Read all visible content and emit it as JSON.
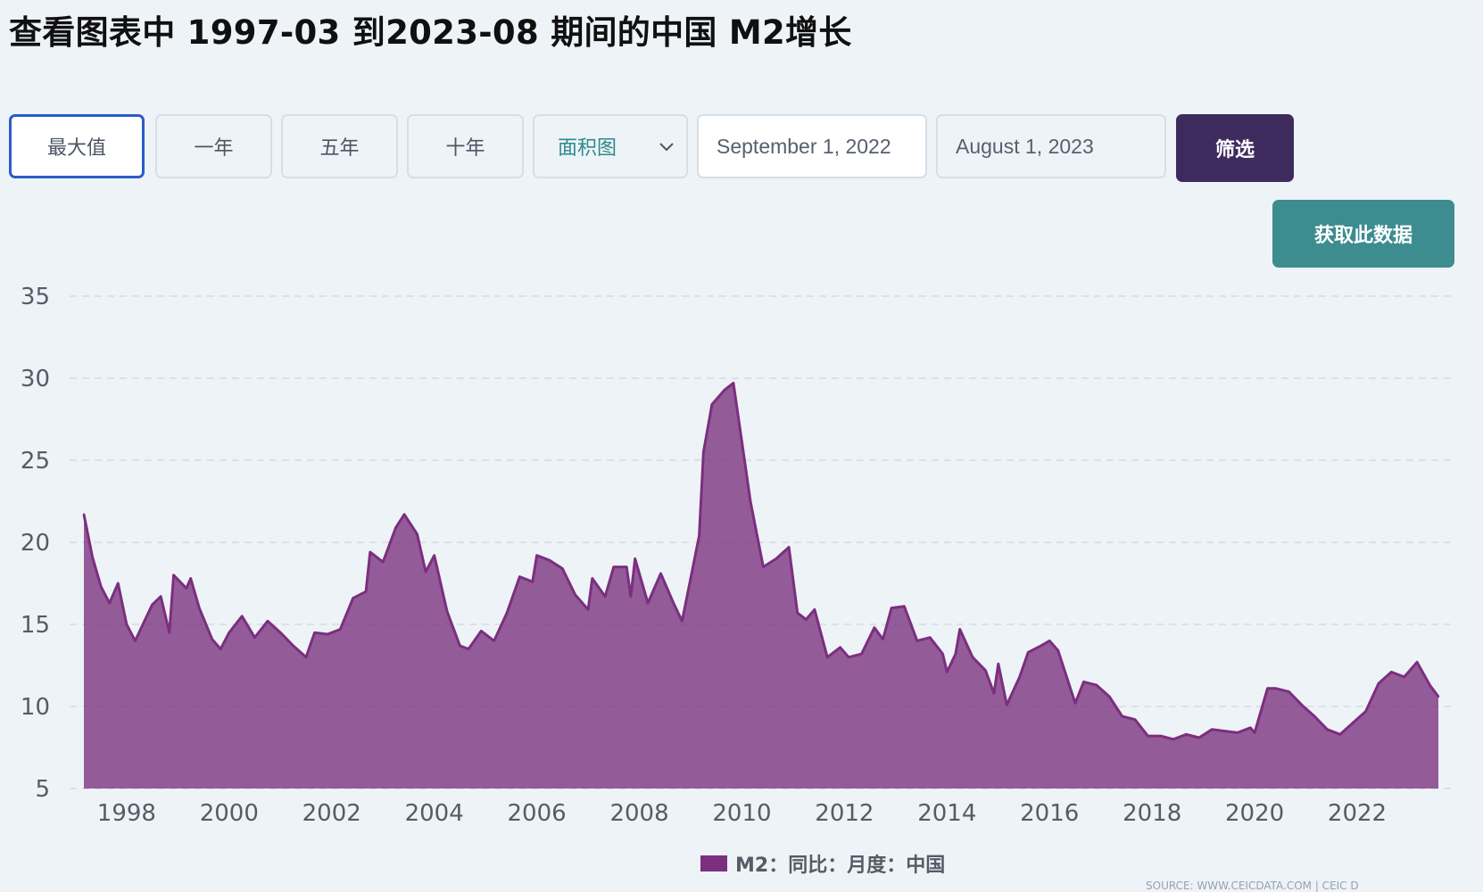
{
  "page": {
    "title": "查看图表中 1997-03 到2023-08 期间的中国 M2增长"
  },
  "controls": {
    "range_buttons": [
      {
        "label": "最大值",
        "active": true
      },
      {
        "label": "一年",
        "active": false
      },
      {
        "label": "五年",
        "active": false
      },
      {
        "label": "十年",
        "active": false
      }
    ],
    "chart_type_select": {
      "value": "面积图",
      "icon": "chevron-down-icon"
    },
    "start_date": "September 1, 2022",
    "end_date": "August 1, 2023",
    "filter_label": "筛选",
    "get_data_label": "获取此数据"
  },
  "colors": {
    "series": "#7b2f7e",
    "filter_button": "#3e2b5e",
    "get_data_button": "#3d8c8f",
    "active_border": "#2b5bc7"
  },
  "chart_data": {
    "type": "area",
    "title": "",
    "xlabel": "",
    "ylabel": "",
    "ylim": [
      5,
      35
    ],
    "yticks": [
      "5",
      "10",
      "15",
      "20",
      "25",
      "30",
      "35"
    ],
    "xlim": [
      "1997-03",
      "2023-08"
    ],
    "xticks": [
      "1998",
      "2000",
      "2002",
      "2004",
      "2006",
      "2008",
      "2010",
      "2012",
      "2014",
      "2016",
      "2018",
      "2020",
      "2022"
    ],
    "grid": "horizontal dashed",
    "legend": "bottom-center",
    "series": [
      {
        "name": "M2：同比：月度：中国",
        "color": "#7b2f7e",
        "points": [
          [
            "1997-03",
            21.7
          ],
          [
            "1997-05",
            19.1
          ],
          [
            "1997-07",
            17.3
          ],
          [
            "1997-09",
            16.3
          ],
          [
            "1997-11",
            17.5
          ],
          [
            "1998-01",
            15.0
          ],
          [
            "1998-03",
            14.0
          ],
          [
            "1998-05",
            15.1
          ],
          [
            "1998-07",
            16.2
          ],
          [
            "1998-09",
            16.7
          ],
          [
            "1998-11",
            14.5
          ],
          [
            "1998-12",
            18.0
          ],
          [
            "1999-03",
            17.2
          ],
          [
            "1999-04",
            17.8
          ],
          [
            "1999-06",
            16.0
          ],
          [
            "1999-09",
            14.1
          ],
          [
            "1999-11",
            13.5
          ],
          [
            "2000-01",
            14.5
          ],
          [
            "2000-04",
            15.5
          ],
          [
            "2000-07",
            14.2
          ],
          [
            "2000-10",
            15.2
          ],
          [
            "2001-01",
            14.5
          ],
          [
            "2001-04",
            13.7
          ],
          [
            "2001-07",
            13.0
          ],
          [
            "2001-09",
            14.5
          ],
          [
            "2001-12",
            14.4
          ],
          [
            "2002-03",
            14.7
          ],
          [
            "2002-06",
            16.6
          ],
          [
            "2002-09",
            17.0
          ],
          [
            "2002-10",
            19.4
          ],
          [
            "2003-01",
            18.8
          ],
          [
            "2003-04",
            20.9
          ],
          [
            "2003-06",
            21.7
          ],
          [
            "2003-09",
            20.5
          ],
          [
            "2003-11",
            18.2
          ],
          [
            "2004-01",
            19.2
          ],
          [
            "2004-04",
            15.8
          ],
          [
            "2004-07",
            13.7
          ],
          [
            "2004-09",
            13.5
          ],
          [
            "2004-12",
            14.6
          ],
          [
            "2005-03",
            14.0
          ],
          [
            "2005-06",
            15.7
          ],
          [
            "2005-09",
            17.9
          ],
          [
            "2005-12",
            17.6
          ],
          [
            "2006-01",
            19.2
          ],
          [
            "2006-04",
            18.9
          ],
          [
            "2006-07",
            18.4
          ],
          [
            "2006-10",
            16.8
          ],
          [
            "2007-01",
            15.9
          ],
          [
            "2007-02",
            17.8
          ],
          [
            "2007-05",
            16.7
          ],
          [
            "2007-07",
            18.5
          ],
          [
            "2007-10",
            18.5
          ],
          [
            "2007-11",
            16.7
          ],
          [
            "2007-12",
            19.0
          ],
          [
            "2008-03",
            16.3
          ],
          [
            "2008-06",
            18.1
          ],
          [
            "2008-09",
            16.3
          ],
          [
            "2008-11",
            15.2
          ],
          [
            "2009-01",
            17.8
          ],
          [
            "2009-03",
            20.4
          ],
          [
            "2009-04",
            25.5
          ],
          [
            "2009-06",
            28.4
          ],
          [
            "2009-09",
            29.3
          ],
          [
            "2009-11",
            29.7
          ],
          [
            "2010-01",
            26.1
          ],
          [
            "2010-03",
            22.5
          ],
          [
            "2010-06",
            18.5
          ],
          [
            "2010-09",
            19.0
          ],
          [
            "2010-12",
            19.7
          ],
          [
            "2011-02",
            15.7
          ],
          [
            "2011-04",
            15.3
          ],
          [
            "2011-06",
            15.9
          ],
          [
            "2011-09",
            13.0
          ],
          [
            "2011-12",
            13.6
          ],
          [
            "2012-02",
            13.0
          ],
          [
            "2012-05",
            13.2
          ],
          [
            "2012-08",
            14.8
          ],
          [
            "2012-10",
            14.1
          ],
          [
            "2012-12",
            16.0
          ],
          [
            "2013-03",
            16.1
          ],
          [
            "2013-06",
            14.0
          ],
          [
            "2013-09",
            14.2
          ],
          [
            "2013-12",
            13.2
          ],
          [
            "2014-01",
            12.1
          ],
          [
            "2014-03",
            13.2
          ],
          [
            "2014-04",
            14.7
          ],
          [
            "2014-07",
            13.0
          ],
          [
            "2014-10",
            12.2
          ],
          [
            "2014-12",
            10.8
          ],
          [
            "2015-01",
            12.6
          ],
          [
            "2015-03",
            10.1
          ],
          [
            "2015-06",
            11.8
          ],
          [
            "2015-08",
            13.3
          ],
          [
            "2015-11",
            13.7
          ],
          [
            "2016-01",
            14.0
          ],
          [
            "2016-03",
            13.4
          ],
          [
            "2016-05",
            11.8
          ],
          [
            "2016-07",
            10.2
          ],
          [
            "2016-09",
            11.5
          ],
          [
            "2016-12",
            11.3
          ],
          [
            "2017-03",
            10.6
          ],
          [
            "2017-06",
            9.4
          ],
          [
            "2017-09",
            9.2
          ],
          [
            "2017-12",
            8.2
          ],
          [
            "2018-03",
            8.2
          ],
          [
            "2018-06",
            8.0
          ],
          [
            "2018-09",
            8.3
          ],
          [
            "2018-12",
            8.1
          ],
          [
            "2019-03",
            8.6
          ],
          [
            "2019-06",
            8.5
          ],
          [
            "2019-09",
            8.4
          ],
          [
            "2019-12",
            8.7
          ],
          [
            "2020-01",
            8.4
          ],
          [
            "2020-04",
            11.1
          ],
          [
            "2020-06",
            11.1
          ],
          [
            "2020-09",
            10.9
          ],
          [
            "2020-12",
            10.1
          ],
          [
            "2021-03",
            9.4
          ],
          [
            "2021-06",
            8.6
          ],
          [
            "2021-09",
            8.3
          ],
          [
            "2021-12",
            9.0
          ],
          [
            "2022-03",
            9.7
          ],
          [
            "2022-06",
            11.4
          ],
          [
            "2022-09",
            12.1
          ],
          [
            "2022-12",
            11.8
          ],
          [
            "2023-03",
            12.7
          ],
          [
            "2023-06",
            11.3
          ],
          [
            "2023-08",
            10.6
          ]
        ]
      }
    ]
  },
  "legend": {
    "label": "M2：同比：月度：中国"
  },
  "footer": {
    "source": "SOURCE: WWW.CEICDATA.COM | CEIC D"
  }
}
